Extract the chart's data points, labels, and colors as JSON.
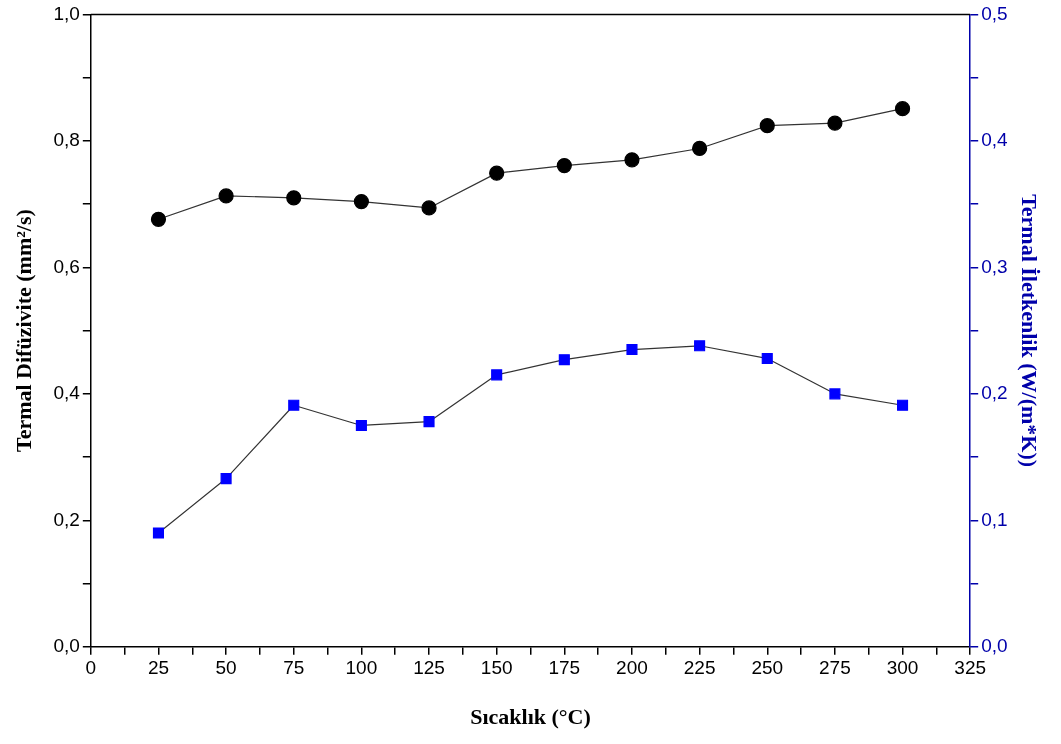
{
  "chart_data": {
    "type": "line",
    "xlabel": "Sıcaklık (°C)",
    "ylabel": "Termal Difüzivite (mm²/s)",
    "y2label": "Termal İletkenlik (W/(m*K))",
    "x": [
      25,
      50,
      75,
      100,
      125,
      150,
      175,
      200,
      225,
      250,
      275,
      300
    ],
    "series": [
      {
        "color": "#000000",
        "marker": "circle",
        "values": [
          0.676,
          0.713,
          0.71,
          0.704,
          0.694,
          0.749,
          0.761,
          0.77,
          0.788,
          0.824,
          0.828,
          0.851
        ]
      },
      {
        "color": "#0000ff",
        "marker": "square",
        "axis": "y2",
        "values": [
          0.09,
          0.133,
          0.191,
          0.175,
          0.178,
          0.215,
          0.227,
          0.235,
          0.238,
          0.228,
          0.2,
          0.191
        ]
      }
    ],
    "xlim": [
      0,
      325
    ],
    "xticks": [
      0,
      {
        "value": 12.5,
        "label": null
      },
      25,
      {
        "value": 37.5,
        "label": null
      },
      50,
      {
        "value": 62.5,
        "label": null
      },
      75,
      {
        "value": 87.5,
        "label": null
      },
      100,
      {
        "value": 112.5,
        "label": null
      },
      125,
      {
        "value": 137.5,
        "label": null
      },
      150,
      {
        "value": 162.5,
        "label": null
      },
      175,
      {
        "value": 187.5,
        "label": null
      },
      200,
      {
        "value": 212.5,
        "label": null
      },
      225,
      {
        "value": 237.5,
        "label": null
      },
      250,
      {
        "value": 262.5,
        "label": null
      },
      275,
      {
        "value": 287.5,
        "label": null
      },
      300,
      {
        "value": 312.5,
        "label": null
      },
      325
    ],
    "ylim": [
      0,
      1
    ],
    "yticks": [
      {
        "value": 0,
        "label": "0,0"
      },
      {
        "value": 0.1,
        "label": null
      },
      {
        "value": 0.2,
        "label": "0,2"
      },
      {
        "value": 0.3,
        "label": null
      },
      {
        "value": 0.4,
        "label": "0,4"
      },
      {
        "value": 0.5,
        "label": null
      },
      {
        "value": 0.6,
        "label": "0,6"
      },
      {
        "value": 0.7,
        "label": null
      },
      {
        "value": 0.8,
        "label": "0,8"
      },
      {
        "value": 0.9,
        "label": null
      },
      {
        "value": 1,
        "label": "1,0"
      }
    ],
    "y2lim": [
      0,
      0.5
    ],
    "y2ticks": [
      {
        "value": 0,
        "label": "0,0"
      },
      {
        "value": 0.05,
        "label": null
      },
      {
        "value": 0.1,
        "label": "0,1"
      },
      {
        "value": 0.15,
        "label": null
      },
      {
        "value": 0.2,
        "label": "0,2"
      },
      {
        "value": 0.25,
        "label": null
      },
      {
        "value": 0.3,
        "label": "0,3"
      },
      {
        "value": 0.35,
        "label": null
      },
      {
        "value": 0.4,
        "label": "0,4"
      },
      {
        "value": 0.45,
        "label": null
      },
      {
        "value": 0.5,
        "label": "0,5"
      }
    ],
    "grid": false,
    "legend": false
  }
}
